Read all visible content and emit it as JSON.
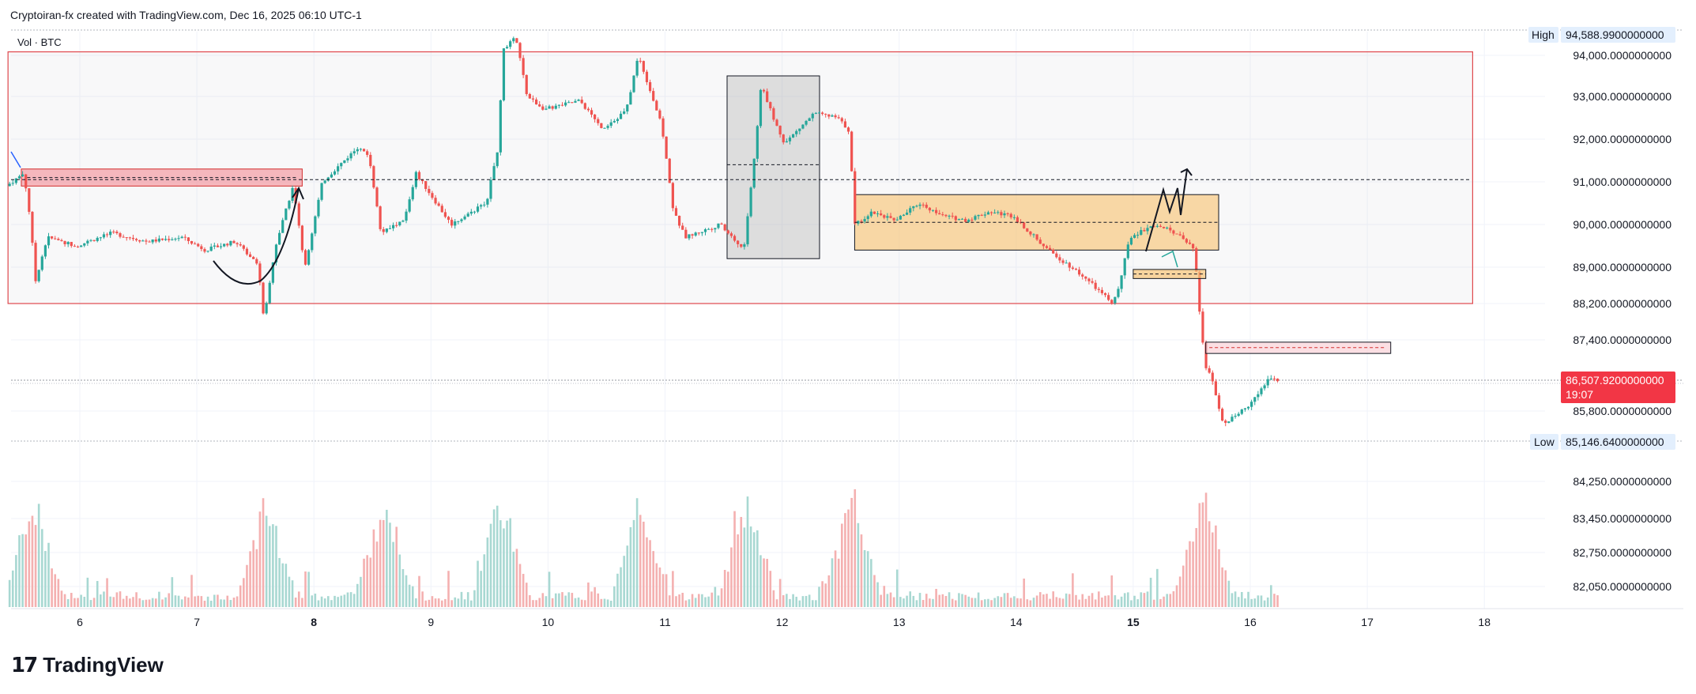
{
  "header": {
    "attribution": "Cryptoiran-fx created with TradingView.com, Dec 16, 2025 06:10 UTC-1"
  },
  "pane": {
    "label": "Vol · BTC"
  },
  "footer": {
    "brand": "TradingView"
  },
  "colors": {
    "up": "#26a69a",
    "down": "#ef5350",
    "vol_up": "#a8d8d2",
    "vol_down": "#f4b0b0",
    "price_badge": "#f23645",
    "range_box": "#e0484d",
    "orange_zone": "#f8d3a0",
    "grid": "#f0f3fa"
  },
  "chart_data": {
    "type": "candlestick",
    "symbol": "BTC",
    "x_ticks": [
      "6",
      "7",
      "8",
      "9",
      "10",
      "11",
      "12",
      "13",
      "14",
      "15",
      "16",
      "17",
      "18"
    ],
    "x_tick_bold": [
      "8",
      "15"
    ],
    "y_ticks": [
      94000,
      93000,
      92000,
      91000,
      90000,
      89000,
      88200,
      87400,
      85800,
      84250,
      83450,
      82750,
      82050
    ],
    "y_tick_labels": [
      "94,000.0000000000",
      "93,000.0000000000",
      "92,000.0000000000",
      "91,000.0000000000",
      "90,000.0000000000",
      "89,000.0000000000",
      "88,200.0000000000",
      "87,400.0000000000",
      "85,800.0000000000",
      "84,250.0000000000",
      "83,450.0000000000",
      "82,750.0000000000",
      "82,050.0000000000"
    ],
    "high": {
      "label": "High",
      "value": "94,588.9900000000"
    },
    "low": {
      "label": "Low",
      "value": "85,146.6400000000"
    },
    "last": {
      "value": "86,507.9200000000",
      "countdown": "19:07"
    },
    "price_path": [
      [
        5.4,
        90900
      ],
      [
        5.55,
        91200
      ],
      [
        5.6,
        90200
      ],
      [
        5.65,
        88700
      ],
      [
        5.75,
        89700
      ],
      [
        6.0,
        89500
      ],
      [
        6.3,
        89800
      ],
      [
        6.6,
        89600
      ],
      [
        6.9,
        89700
      ],
      [
        7.1,
        89400
      ],
      [
        7.35,
        89600
      ],
      [
        7.55,
        89100
      ],
      [
        7.6,
        87800
      ],
      [
        7.7,
        89500
      ],
      [
        7.85,
        90900
      ],
      [
        7.95,
        89000
      ],
      [
        8.1,
        91000
      ],
      [
        8.4,
        91800
      ],
      [
        8.5,
        91600
      ],
      [
        8.6,
        89800
      ],
      [
        8.8,
        90100
      ],
      [
        8.9,
        91200
      ],
      [
        9.2,
        90000
      ],
      [
        9.5,
        90500
      ],
      [
        9.6,
        91800
      ],
      [
        9.65,
        94200
      ],
      [
        9.75,
        94500
      ],
      [
        9.85,
        93000
      ],
      [
        10.0,
        92700
      ],
      [
        10.3,
        92900
      ],
      [
        10.5,
        92200
      ],
      [
        10.7,
        92700
      ],
      [
        10.8,
        94000
      ],
      [
        11.0,
        92300
      ],
      [
        11.1,
        90300
      ],
      [
        11.2,
        89700
      ],
      [
        11.5,
        90000
      ],
      [
        11.7,
        89400
      ],
      [
        11.8,
        91800
      ],
      [
        11.85,
        93300
      ],
      [
        11.95,
        92500
      ],
      [
        12.05,
        91900
      ],
      [
        12.3,
        92600
      ],
      [
        12.5,
        92500
      ],
      [
        12.6,
        92200
      ],
      [
        12.65,
        90000
      ],
      [
        12.8,
        90300
      ],
      [
        13.0,
        90100
      ],
      [
        13.2,
        90500
      ],
      [
        13.4,
        90200
      ],
      [
        13.6,
        90100
      ],
      [
        13.8,
        90300
      ],
      [
        14.0,
        90200
      ],
      [
        14.3,
        89400
      ],
      [
        14.6,
        88800
      ],
      [
        14.85,
        88200
      ],
      [
        14.9,
        88500
      ],
      [
        15.0,
        89700
      ],
      [
        15.2,
        90000
      ],
      [
        15.4,
        89800
      ],
      [
        15.55,
        89400
      ],
      [
        15.6,
        87800
      ],
      [
        15.65,
        86800
      ],
      [
        15.7,
        86500
      ],
      [
        15.8,
        85500
      ],
      [
        16.0,
        85900
      ],
      [
        16.1,
        86200
      ],
      [
        16.2,
        86600
      ],
      [
        16.25,
        86508
      ]
    ],
    "volume_profile": "spikes near 5.6, 7.6, 8.6, 9.6, 10.8, 11.7, 12.6, 15.6",
    "annotations": [
      {
        "type": "range_box",
        "x": [
          5.4,
          17.9
        ],
        "y": [
          88200,
          94100
        ]
      },
      {
        "type": "supply_zone",
        "x": [
          5.5,
          7.9
        ],
        "y": [
          90900,
          91300
        ]
      },
      {
        "type": "grey_box",
        "x": [
          11.53,
          12.32
        ],
        "y": [
          89200,
          93500
        ]
      },
      {
        "type": "orange_zone",
        "x": [
          12.62,
          15.73
        ],
        "y": [
          89400,
          90700
        ]
      },
      {
        "type": "small_box",
        "x": [
          15.0,
          15.62
        ],
        "y": [
          88750,
          88950
        ]
      },
      {
        "type": "small_box",
        "x": [
          15.62,
          17.2
        ],
        "y": [
          87100,
          87350
        ]
      },
      {
        "type": "dashed_line",
        "y": 91050
      },
      {
        "type": "dashed_line",
        "y": 90050
      }
    ]
  }
}
